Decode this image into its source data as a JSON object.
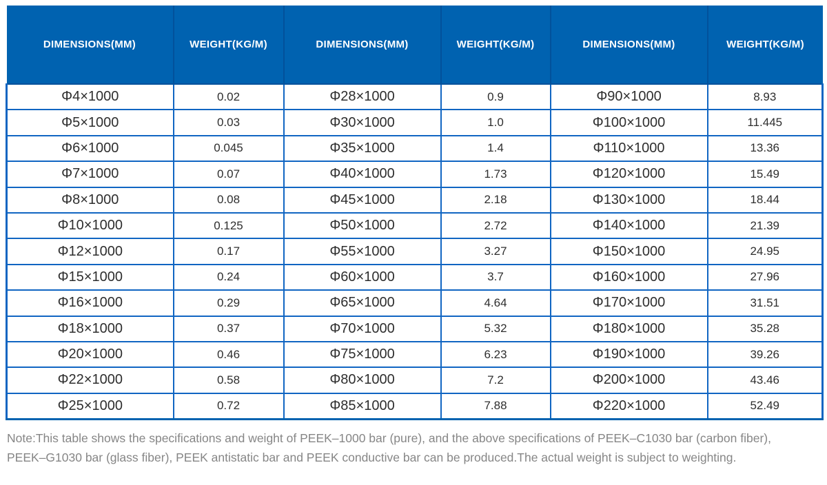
{
  "table": {
    "columns": [
      {
        "label": "DIMENSIONS(MM)"
      },
      {
        "label": "WEIGHT(KG/M)"
      },
      {
        "label": "DIMENSIONS(MM)"
      },
      {
        "label": "WEIGHT(KG/M)"
      },
      {
        "label": "DIMENSIONS(MM)"
      },
      {
        "label": "WEIGHT(KG/M)"
      }
    ],
    "rows": [
      [
        "Φ4×1000",
        "0.02",
        "Φ28×1000",
        "0.9",
        "Φ90×1000",
        "8.93"
      ],
      [
        "Φ5×1000",
        "0.03",
        "Φ30×1000",
        "1.0",
        "Φ100×1000",
        "11.445"
      ],
      [
        "Φ6×1000",
        "0.045",
        "Φ35×1000",
        "1.4",
        "Φ110×1000",
        "13.36"
      ],
      [
        "Φ7×1000",
        "0.07",
        "Φ40×1000",
        "1.73",
        "Φ120×1000",
        "15.49"
      ],
      [
        "Φ8×1000",
        "0.08",
        "Φ45×1000",
        "2.18",
        "Φ130×1000",
        "18.44"
      ],
      [
        "Φ10×1000",
        "0.125",
        "Φ50×1000",
        "2.72",
        "Φ140×1000",
        "21.39"
      ],
      [
        "Φ12×1000",
        "0.17",
        "Φ55×1000",
        "3.27",
        "Φ150×1000",
        "24.95"
      ],
      [
        "Φ15×1000",
        "0.24",
        "Φ60×1000",
        "3.7",
        "Φ160×1000",
        "27.96"
      ],
      [
        "Φ16×1000",
        "0.29",
        "Φ65×1000",
        "4.64",
        "Φ170×1000",
        "31.51"
      ],
      [
        "Φ18×1000",
        "0.37",
        "Φ70×1000",
        "5.32",
        "Φ180×1000",
        "35.28"
      ],
      [
        "Φ20×1000",
        "0.46",
        "Φ75×1000",
        "6.23",
        "Φ190×1000",
        "39.26"
      ],
      [
        "Φ22×1000",
        "0.58",
        "Φ80×1000",
        "7.2",
        "Φ200×1000",
        "43.46"
      ],
      [
        "Φ25×1000",
        "0.72",
        "Φ85×1000",
        "7.88",
        "Φ220×1000",
        "52.49"
      ]
    ]
  },
  "note": {
    "line1": "Note:This table shows the specifications and weight of PEEK–1000 bar (pure), and the above specifications of PEEK–C1030 bar (carbon fiber),",
    "line2": "PEEK–G1030 bar (glass fiber), PEEK antistatic bar and PEEK conductive bar can be produced.The actual weight is subject to weighting."
  },
  "colors": {
    "header_bg": "#0062b0",
    "header_divider": "#02519b",
    "border": "#1065c2",
    "cell_text": "#2e2e2e",
    "note_text": "#868686"
  }
}
